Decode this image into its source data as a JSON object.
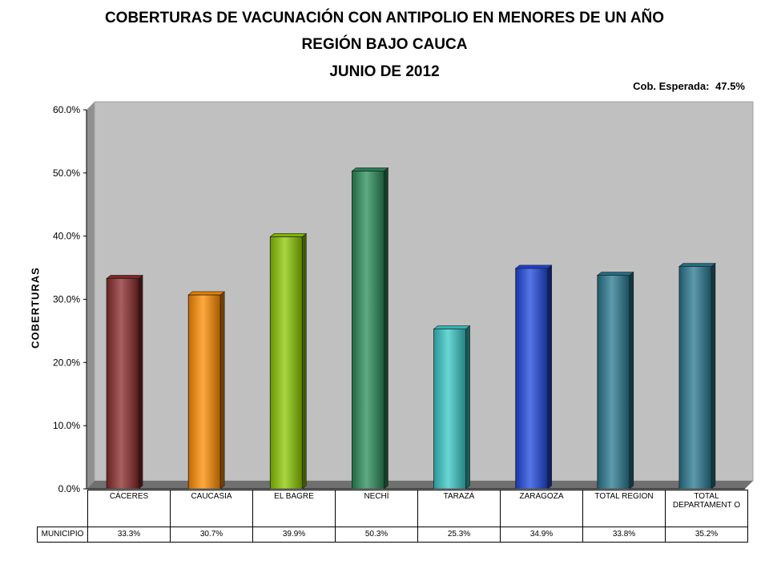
{
  "titles": {
    "line1": "COBERTURAS DE VACUNACIÓN CON ANTIPOLIO EN MENORES DE UN AÑO",
    "line2": "REGIÓN BAJO CAUCA",
    "line3": "JUNIO DE 2012"
  },
  "expected": {
    "label": "Cob. Esperada:",
    "value": "47.5%"
  },
  "chart_data": {
    "type": "bar",
    "ylabel": "COBERTURAS",
    "ylim": [
      0,
      60
    ],
    "yticks": [
      "0.0%",
      "10.0%",
      "20.0%",
      "30.0%",
      "40.0%",
      "50.0%",
      "60.0%"
    ],
    "categories": [
      "CÁCERES",
      "CAUCASIA",
      "EL BAGRE",
      "NECHÍ",
      "TARAZÁ",
      "ZARAGOZA",
      "TOTAL REGION",
      "TOTAL DEPARTAMENTO"
    ],
    "category_display": [
      "CÁCERES",
      "CAUCASIA",
      "EL BAGRE",
      "NECHÍ",
      "TARAZÁ",
      "ZARAGOZA",
      "TOTAL REGION",
      "TOTAL DEPARTAMENT O"
    ],
    "series": [
      {
        "name": "MUNICIPIO",
        "values": [
          33.3,
          30.7,
          39.9,
          50.3,
          25.3,
          34.9,
          33.8,
          35.2
        ],
        "labels": [
          "33.3%",
          "30.7%",
          "39.9%",
          "50.3%",
          "25.3%",
          "34.9%",
          "33.8%",
          "35.2%"
        ]
      }
    ],
    "colors": [
      "#8b2a2a",
      "#ff8c00",
      "#8cc800",
      "#2a8c5a",
      "#38c8c8",
      "#1e48e0",
      "#287890",
      "#287890"
    ],
    "legend": "data table",
    "grid": false
  }
}
